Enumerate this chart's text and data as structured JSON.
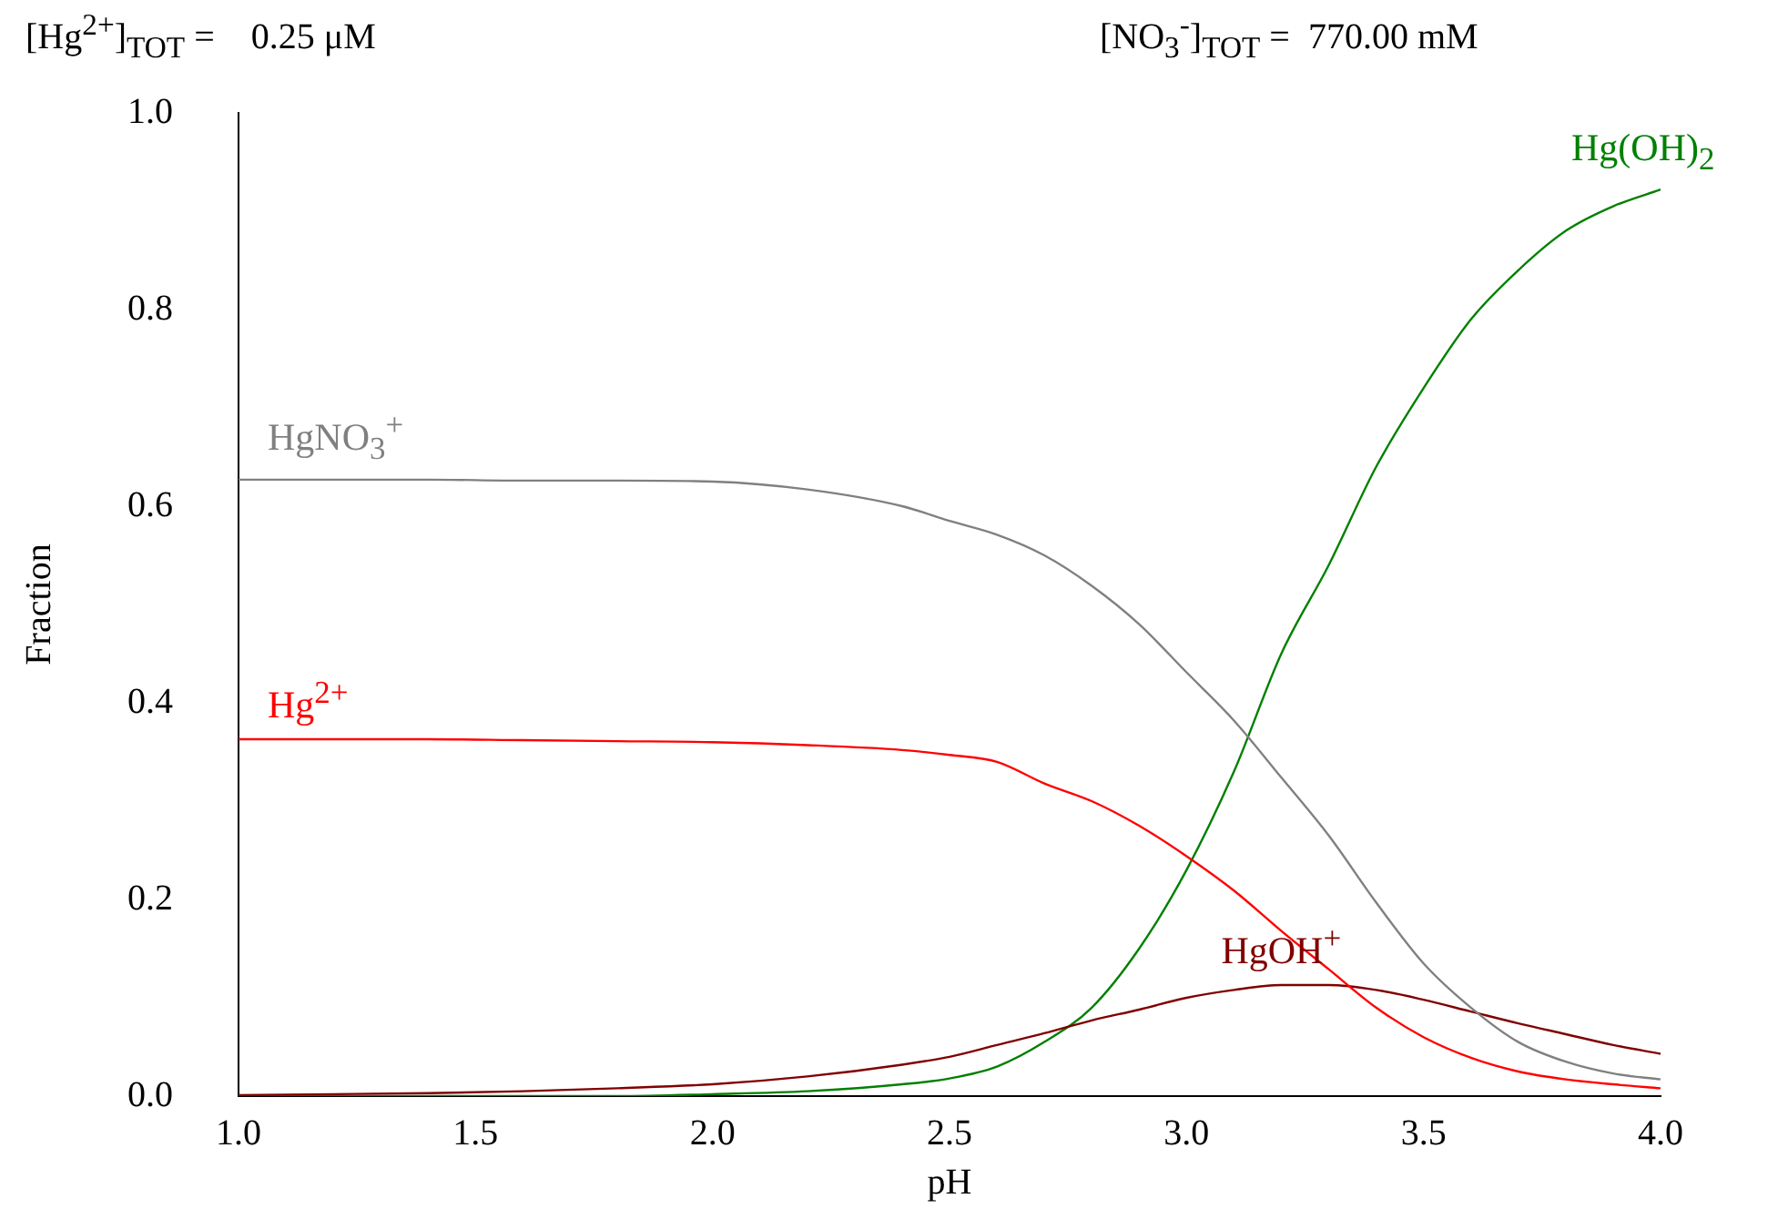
{
  "chart_data": {
    "type": "line",
    "xlabel": "pH",
    "ylabel": "Fraction",
    "annotations": [
      "[Hg$^{2+}$]$_{TOT}$ =    0.25 μM",
      "[NO$_{3}$$^{-}$]$_{TOT}$ =  770.00 mM"
    ],
    "x": [
      1.0,
      1.2,
      1.4,
      1.6,
      1.8,
      2.0,
      2.2,
      2.4,
      2.5,
      2.6,
      2.7,
      2.8,
      2.9,
      3.0,
      3.1,
      3.2,
      3.3,
      3.4,
      3.5,
      3.6,
      3.7,
      3.8,
      3.9,
      4.0
    ],
    "series": [
      {
        "name": "HgNO$_{3}$$^{+}$",
        "color": "#808080",
        "values": [
          0.627,
          0.627,
          0.627,
          0.626,
          0.626,
          0.625,
          0.617,
          0.6,
          0.585,
          0.571,
          0.55,
          0.519,
          0.48,
          0.431,
          0.382,
          0.324,
          0.265,
          0.197,
          0.135,
          0.09,
          0.055,
          0.035,
          0.023,
          0.017
        ]
      },
      {
        "name": "Hg$^{2+}$",
        "color": "#ff0000",
        "values": [
          0.363,
          0.363,
          0.363,
          0.362,
          0.361,
          0.36,
          0.357,
          0.352,
          0.347,
          0.34,
          0.318,
          0.3,
          0.275,
          0.244,
          0.209,
          0.168,
          0.129,
          0.09,
          0.06,
          0.039,
          0.025,
          0.017,
          0.012,
          0.008
        ]
      },
      {
        "name": "HgOH$^{+}$",
        "color": "#800000",
        "values": [
          0.001,
          0.002,
          0.003,
          0.005,
          0.008,
          0.012,
          0.02,
          0.032,
          0.04,
          0.052,
          0.064,
          0.077,
          0.088,
          0.1,
          0.108,
          0.113,
          0.113,
          0.108,
          0.098,
          0.086,
          0.074,
          0.063,
          0.052,
          0.043
        ]
      },
      {
        "name": "Hg(OH)$_{2}$",
        "color": "#008000",
        "values": [
          0,
          0,
          0,
          0,
          0,
          0.002,
          0.005,
          0.012,
          0.018,
          0.03,
          0.055,
          0.09,
          0.15,
          0.23,
          0.33,
          0.45,
          0.54,
          0.64,
          0.72,
          0.79,
          0.84,
          0.88,
          0.905,
          0.922
        ]
      }
    ],
    "xlim": [
      1.0,
      4.0
    ],
    "xticks": [
      {
        "value": 1.0,
        "label": "1.0"
      },
      1.5,
      {
        "value": 2.0,
        "label": "2.0"
      },
      2.5,
      {
        "value": 3.0,
        "label": "3.0"
      },
      3.5,
      {
        "value": 4.0,
        "label": "4.0"
      }
    ],
    "ylim": [
      0,
      1.0
    ],
    "yticks": [
      {
        "value": 0,
        "label": "0.0"
      },
      0.2,
      0.4,
      0.6,
      0.8,
      {
        "value": 1.0,
        "label": "1.0"
      }
    ],
    "grid": false,
    "legend": false,
    "marker": "none",
    "line_style": "solid"
  }
}
